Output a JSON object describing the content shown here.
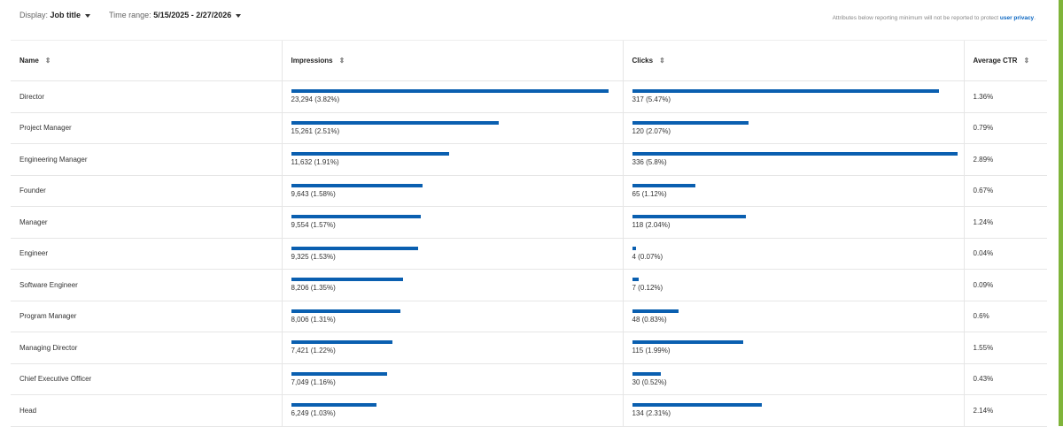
{
  "filters": {
    "display_label": "Display:",
    "display_value": "Job title",
    "time_label": "Time range:",
    "time_value": "5/15/2025 - 2/27/2026"
  },
  "note": {
    "text": "Attributes below reporting minimum will not be reported to protect ",
    "link": "user privacy",
    "end": "."
  },
  "columns": [
    "Name",
    "Impressions",
    "Clicks",
    "Average CTR"
  ],
  "colors": {
    "bar": "#0a5fb0",
    "accent": "#0a66c2"
  },
  "rows": [
    {
      "name": "Director",
      "impressions": 23294,
      "impressions_label": "23,294 (3.82%)",
      "clicks": 317,
      "clicks_label": "317 (5.47%)",
      "ctr": "1.36%"
    },
    {
      "name": "Project Manager",
      "impressions": 15261,
      "impressions_label": "15,261 (2.51%)",
      "clicks": 120,
      "clicks_label": "120 (2.07%)",
      "ctr": "0.79%"
    },
    {
      "name": "Engineering Manager",
      "impressions": 11632,
      "impressions_label": "11,632 (1.91%)",
      "clicks": 336,
      "clicks_label": "336 (5.8%)",
      "ctr": "2.89%"
    },
    {
      "name": "Founder",
      "impressions": 9643,
      "impressions_label": "9,643 (1.58%)",
      "clicks": 65,
      "clicks_label": "65 (1.12%)",
      "ctr": "0.67%"
    },
    {
      "name": "Manager",
      "impressions": 9554,
      "impressions_label": "9,554 (1.57%)",
      "clicks": 118,
      "clicks_label": "118 (2.04%)",
      "ctr": "1.24%"
    },
    {
      "name": "Engineer",
      "impressions": 9325,
      "impressions_label": "9,325 (1.53%)",
      "clicks": 4,
      "clicks_label": "4 (0.07%)",
      "ctr": "0.04%"
    },
    {
      "name": "Software Engineer",
      "impressions": 8206,
      "impressions_label": "8,206 (1.35%)",
      "clicks": 7,
      "clicks_label": "7 (0.12%)",
      "ctr": "0.09%"
    },
    {
      "name": "Program Manager",
      "impressions": 8006,
      "impressions_label": "8,006 (1.31%)",
      "clicks": 48,
      "clicks_label": "48 (0.83%)",
      "ctr": "0.6%"
    },
    {
      "name": "Managing Director",
      "impressions": 7421,
      "impressions_label": "7,421 (1.22%)",
      "clicks": 115,
      "clicks_label": "115 (1.99%)",
      "ctr": "1.55%"
    },
    {
      "name": "Chief Executive Officer",
      "impressions": 7049,
      "impressions_label": "7,049 (1.16%)",
      "clicks": 30,
      "clicks_label": "30 (0.52%)",
      "ctr": "0.43%"
    },
    {
      "name": "Head",
      "impressions": 6249,
      "impressions_label": "6,249 (1.03%)",
      "clicks": 134,
      "clicks_label": "134 (2.31%)",
      "ctr": "2.14%"
    }
  ]
}
